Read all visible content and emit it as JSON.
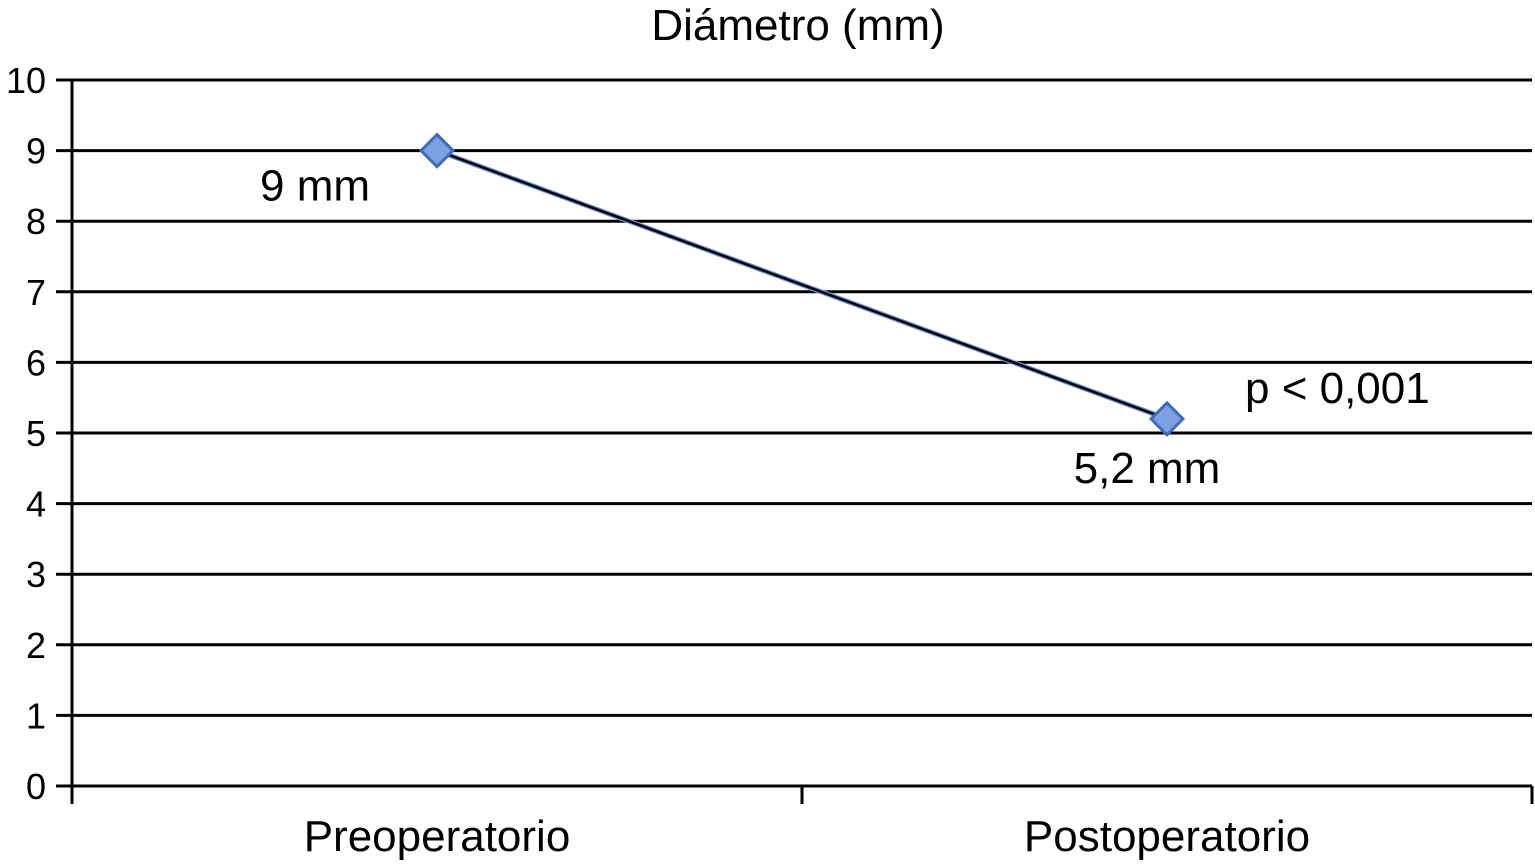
{
  "chart_data": {
    "type": "line",
    "title": "Diámetro (mm)",
    "xlabel": "",
    "ylabel": "",
    "categories": [
      "Preoperatorio",
      "Postoperatorio"
    ],
    "series": [
      {
        "values": [
          9,
          5.2
        ],
        "data_labels": [
          "9 mm",
          "5,2 mm"
        ],
        "color": "#6f94d8",
        "marker_color": "#7ea0e0",
        "marker_stroke": "#3f6bbf",
        "line_overlay_color": "#000000"
      }
    ],
    "ylim": [
      0,
      10
    ],
    "yticks": [
      "0",
      "1",
      "2",
      "3",
      "4",
      "5",
      "6",
      "7",
      "8",
      "9",
      "10"
    ],
    "grid": true,
    "legend": "none",
    "annotation": "p < 0,001"
  }
}
